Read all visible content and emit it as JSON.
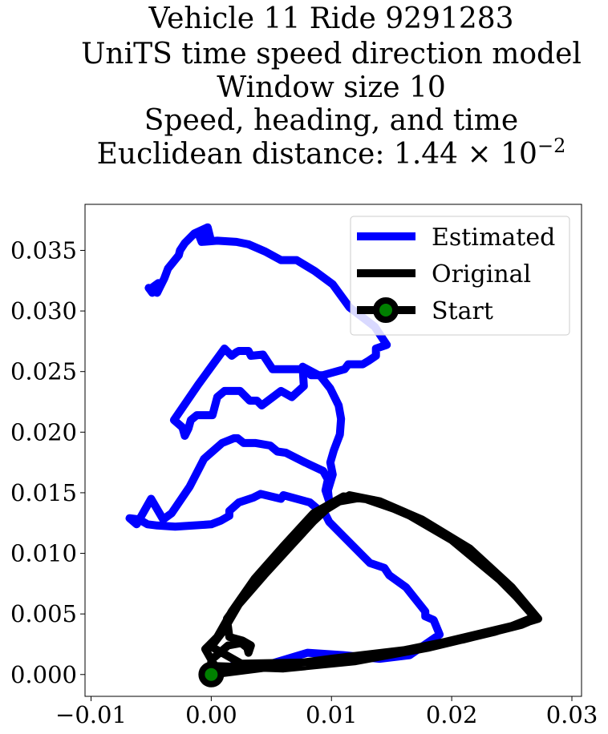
{
  "chart_data": {
    "type": "line",
    "title_lines": [
      "Vehicle 11 Ride 9291283",
      "UniTS time speed direction model",
      "Window size 10",
      "Speed, heading, and time"
    ],
    "title_distance": {
      "prefix": "Euclidean distance: 1.44 × 10",
      "exponent": "−2"
    },
    "xlabel": "",
    "ylabel": "",
    "xlim": [
      -0.0105,
      0.0308
    ],
    "ylim": [
      -0.0018,
      0.0388
    ],
    "xticks": [
      -0.01,
      0.0,
      0.01,
      0.02,
      0.03
    ],
    "xtick_labels": [
      "−0.01",
      "0.00",
      "0.01",
      "0.02",
      "0.03"
    ],
    "yticks": [
      0.0,
      0.005,
      0.01,
      0.015,
      0.02,
      0.025,
      0.03,
      0.035
    ],
    "ytick_labels": [
      "0.000",
      "0.005",
      "0.010",
      "0.015",
      "0.020",
      "0.025",
      "0.030",
      "0.035"
    ],
    "grid": false,
    "legend_position": "top-right",
    "series": [
      {
        "name": "Estimated",
        "color": "#0000ff",
        "points": [
          [
            0.0,
            0.0
          ],
          [
            0.002,
            0.0008
          ],
          [
            0.005,
            0.0009
          ],
          [
            0.008,
            0.0018
          ],
          [
            0.011,
            0.0016
          ],
          [
            0.014,
            0.0013
          ],
          [
            0.0165,
            0.0016
          ],
          [
            0.019,
            0.0033
          ],
          [
            0.0185,
            0.0045
          ],
          [
            0.0178,
            0.0048
          ],
          [
            0.0178,
            0.0052
          ],
          [
            0.0162,
            0.0072
          ],
          [
            0.0148,
            0.0082
          ],
          [
            0.0144,
            0.0088
          ],
          [
            0.0132,
            0.0092
          ],
          [
            0.0112,
            0.0112
          ],
          [
            0.0098,
            0.0126
          ],
          [
            0.0095,
            0.0132
          ],
          [
            0.0088,
            0.0137
          ],
          [
            0.0082,
            0.0142
          ],
          [
            0.006,
            0.0148
          ],
          [
            0.0058,
            0.0145
          ],
          [
            0.0041,
            0.0149
          ],
          [
            0.0035,
            0.0146
          ],
          [
            0.0023,
            0.0142
          ],
          [
            0.0015,
            0.0135
          ],
          [
            0.0015,
            0.0131
          ],
          [
            0.0008,
            0.0127
          ],
          [
            0.0,
            0.0124
          ],
          [
            -0.003,
            0.0122
          ],
          [
            -0.0045,
            0.0123
          ],
          [
            -0.0053,
            0.0124
          ],
          [
            -0.006,
            0.0128
          ],
          [
            -0.0068,
            0.0129
          ],
          [
            -0.0062,
            0.0124
          ],
          [
            -0.005,
            0.0145
          ],
          [
            -0.004,
            0.0128
          ],
          [
            -0.0033,
            0.0133
          ],
          [
            -0.0018,
            0.0155
          ],
          [
            -0.0006,
            0.0178
          ],
          [
            0.0009,
            0.0191
          ],
          [
            0.0019,
            0.0195
          ],
          [
            0.0022,
            0.0195
          ],
          [
            0.0027,
            0.0191
          ],
          [
            0.0037,
            0.0191
          ],
          [
            0.0049,
            0.0189
          ],
          [
            0.0055,
            0.0184
          ],
          [
            0.0062,
            0.0183
          ],
          [
            0.0078,
            0.0175
          ],
          [
            0.0093,
            0.0168
          ],
          [
            0.0097,
            0.0161
          ],
          [
            0.0095,
            0.0152
          ],
          [
            0.0098,
            0.0143
          ],
          [
            0.0097,
            0.0152
          ],
          [
            0.0101,
            0.0165
          ],
          [
            0.0099,
            0.0175
          ],
          [
            0.0102,
            0.0185
          ],
          [
            0.0107,
            0.0198
          ],
          [
            0.0108,
            0.0211
          ],
          [
            0.0106,
            0.0222
          ],
          [
            0.0099,
            0.0236
          ],
          [
            0.0091,
            0.0246
          ],
          [
            0.0076,
            0.0254
          ],
          [
            0.0077,
            0.0238
          ],
          [
            0.0067,
            0.0229
          ],
          [
            0.0058,
            0.0234
          ],
          [
            0.0042,
            0.0222
          ],
          [
            0.0038,
            0.0226
          ],
          [
            0.0032,
            0.0226
          ],
          [
            0.0024,
            0.0234
          ],
          [
            0.0011,
            0.0234
          ],
          [
            0.0005,
            0.0229
          ],
          [
            0.0001,
            0.0214
          ],
          [
            -0.0012,
            0.0214
          ],
          [
            -0.0017,
            0.021
          ],
          [
            -0.0019,
            0.0203
          ],
          [
            -0.0022,
            0.0197
          ],
          [
            -0.0024,
            0.0204
          ],
          [
            -0.0031,
            0.021
          ],
          [
            -0.0011,
            0.0239
          ],
          [
            0.0011,
            0.0269
          ],
          [
            0.0017,
            0.0263
          ],
          [
            0.0021,
            0.0266
          ],
          [
            0.0023,
            0.0267
          ],
          [
            0.0031,
            0.0267
          ],
          [
            0.0033,
            0.0263
          ],
          [
            0.0043,
            0.0264
          ],
          [
            0.0051,
            0.0252
          ],
          [
            0.0078,
            0.0252
          ],
          [
            0.0083,
            0.0247
          ],
          [
            0.0093,
            0.0247
          ],
          [
            0.0111,
            0.0252
          ],
          [
            0.0114,
            0.0256
          ],
          [
            0.0126,
            0.0256
          ],
          [
            0.0131,
            0.0259
          ],
          [
            0.0137,
            0.0263
          ],
          [
            0.0137,
            0.0269
          ],
          [
            0.0146,
            0.0272
          ],
          [
            0.0136,
            0.0287
          ],
          [
            0.0115,
            0.0303
          ],
          [
            0.0101,
            0.0322
          ],
          [
            0.0086,
            0.0333
          ],
          [
            0.0071,
            0.0342
          ],
          [
            0.0058,
            0.0342
          ],
          [
            0.0045,
            0.0349
          ],
          [
            0.0031,
            0.0355
          ],
          [
            0.0021,
            0.0357
          ],
          [
            0.0005,
            0.0358
          ],
          [
            -0.0008,
            0.0357
          ],
          [
            -0.001,
            0.0362
          ],
          [
            -0.0001,
            0.0361
          ],
          [
            -0.0003,
            0.0369
          ],
          [
            -0.0014,
            0.0364
          ],
          [
            -0.0022,
            0.0356
          ],
          [
            -0.0026,
            0.035
          ],
          [
            -0.0027,
            0.0346
          ],
          [
            -0.0036,
            0.0335
          ],
          [
            -0.0039,
            0.0327
          ],
          [
            -0.0043,
            0.0319
          ],
          [
            -0.0045,
            0.0315
          ],
          [
            -0.0051,
            0.0318
          ],
          [
            -0.0044,
            0.0323
          ],
          [
            -0.0049,
            0.0315
          ],
          [
            -0.0052,
            0.0319
          ]
        ]
      },
      {
        "name": "Original",
        "color": "#000000",
        "points": [
          [
            0.0,
            0.0
          ],
          [
            0.004,
            0.0005
          ],
          [
            0.01,
            0.0013
          ],
          [
            0.016,
            0.002
          ],
          [
            0.021,
            0.0029
          ],
          [
            0.0258,
            0.0041
          ],
          [
            0.027,
            0.0046
          ],
          [
            0.0245,
            0.0074
          ],
          [
            0.021,
            0.0105
          ],
          [
            0.017,
            0.0129
          ],
          [
            0.0135,
            0.0144
          ],
          [
            0.011,
            0.0147
          ],
          [
            0.0085,
            0.0133
          ],
          [
            0.006,
            0.0106
          ],
          [
            0.0036,
            0.0079
          ],
          [
            0.0017,
            0.0052
          ],
          [
            0.0005,
            0.0031
          ],
          [
            -0.0005,
            0.0021
          ],
          [
            0.0003,
            0.0007
          ],
          [
            0.006,
            0.0005
          ],
          [
            0.012,
            0.0011
          ],
          [
            0.018,
            0.0022
          ],
          [
            0.0235,
            0.0035
          ],
          [
            0.0272,
            0.0046
          ],
          [
            0.025,
            0.0072
          ],
          [
            0.0215,
            0.0104
          ],
          [
            0.0175,
            0.0128
          ],
          [
            0.014,
            0.0143
          ],
          [
            0.0115,
            0.0148
          ],
          [
            0.0092,
            0.0134
          ],
          [
            0.0068,
            0.0108
          ],
          [
            0.0044,
            0.0082
          ],
          [
            0.0023,
            0.0058
          ],
          [
            0.001,
            0.0036
          ],
          [
            0.0,
            0.0023
          ],
          [
            0.0025,
            0.0009
          ],
          [
            0.008,
            0.001
          ],
          [
            0.014,
            0.0016
          ],
          [
            0.0195,
            0.0027
          ],
          [
            0.025,
            0.004
          ],
          [
            0.027,
            0.0048
          ],
          [
            0.024,
            0.0078
          ],
          [
            0.02,
            0.0111
          ],
          [
            0.016,
            0.0134
          ],
          [
            0.0125,
            0.0146
          ],
          [
            0.0102,
            0.0142
          ],
          [
            0.0078,
            0.012
          ],
          [
            0.0052,
            0.0094
          ],
          [
            0.0029,
            0.0068
          ],
          [
            0.0013,
            0.0046
          ],
          [
            0.0015,
            0.0031
          ],
          [
            0.0026,
            0.0028
          ],
          [
            0.0033,
            0.0024
          ],
          [
            0.0031,
            0.0018
          ],
          [
            0.003,
            0.0022
          ],
          [
            0.0025,
            0.0026
          ],
          [
            0.0014,
            0.0024
          ],
          [
            0.0,
            0.0012
          ],
          [
            0.0,
            0.0
          ]
        ]
      }
    ],
    "start_marker": {
      "name": "Start",
      "x": 0.0,
      "y": 0.0,
      "edge_color": "#000000",
      "face_color": "#008000"
    }
  }
}
